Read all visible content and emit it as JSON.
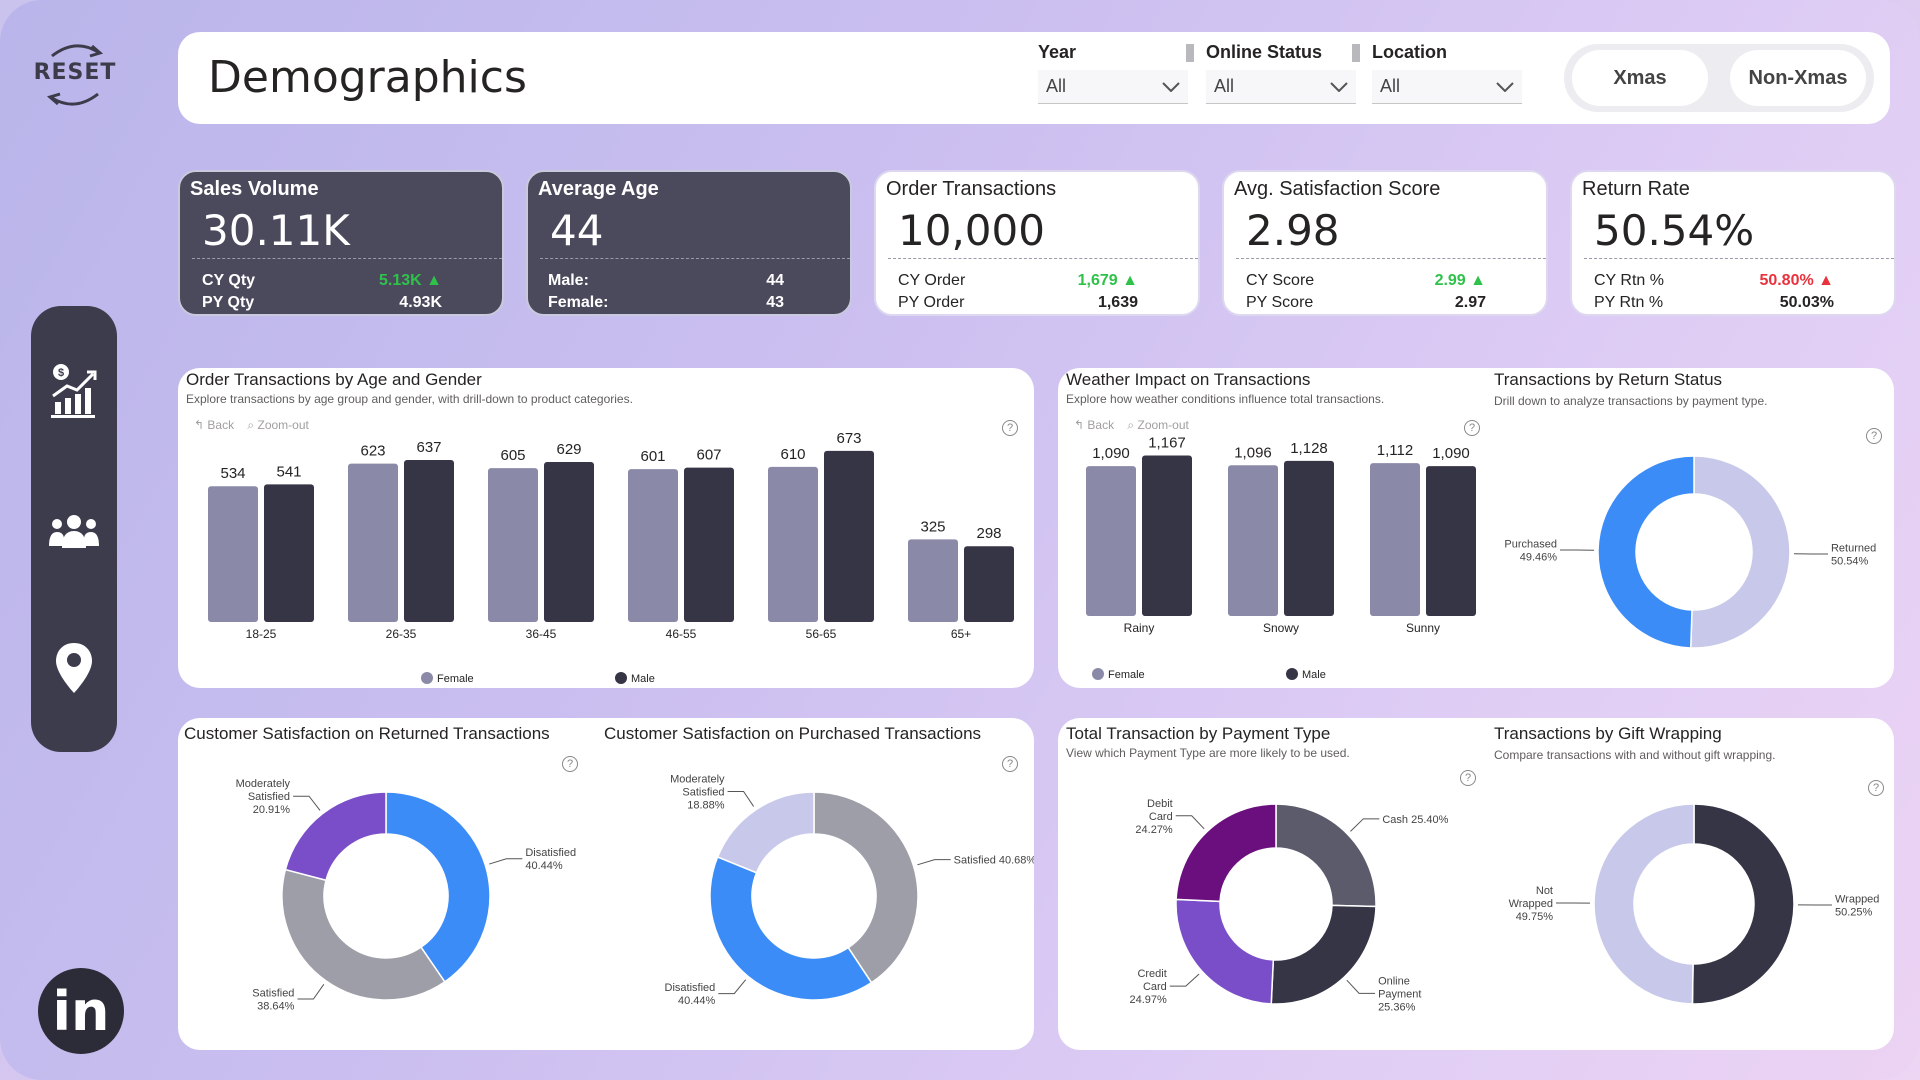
{
  "header": {
    "title": "Demographics",
    "slicers": [
      {
        "label": "Year",
        "value": "All"
      },
      {
        "label": "Online Status",
        "value": "All"
      },
      {
        "label": "Location",
        "value": "All"
      }
    ],
    "toggle": {
      "left": "Xmas",
      "right": "Non-Xmas"
    }
  },
  "sidebar": {
    "reset_label": "RESET",
    "items": [
      {
        "icon": "sales-chart-icon"
      },
      {
        "icon": "people-icon"
      },
      {
        "icon": "location-pin-icon"
      }
    ],
    "linkedin_label": "in"
  },
  "kpis": [
    {
      "title": "Sales Volume",
      "value": "30.11K",
      "row1_label": "CY Qty",
      "row1_value": "5.13K",
      "row1_trend": "up",
      "row2_label": "PY Qty",
      "row2_value": "4.93K"
    },
    {
      "title": "Average Age",
      "value": "44",
      "row1_label": "Male:",
      "row1_value": "44",
      "row1_trend": "",
      "row2_label": "Female:",
      "row2_value": "43"
    },
    {
      "title": "Order Transactions",
      "value": "10,000",
      "row1_label": "CY Order",
      "row1_value": "1,679",
      "row1_trend": "up",
      "row2_label": "PY Order",
      "row2_value": "1,639"
    },
    {
      "title": "Avg. Satisfaction Score",
      "value": "2.98",
      "row1_label": "CY Score",
      "row1_value": "2.99",
      "row1_trend": "up",
      "row2_label": "PY Score",
      "row2_value": "2.97"
    },
    {
      "title": "Return Rate",
      "value": "50.54%",
      "row1_label": "CY Rtn %",
      "row1_value": "50.80%",
      "row1_trend": "up-red",
      "row2_label": "PY Rtn %",
      "row2_value": "50.03%"
    }
  ],
  "chart_tools": {
    "back": "Back",
    "zoom": "Zoom-out",
    "help": "?"
  },
  "colors": {
    "female": "#8a8aa8",
    "male": "#363545",
    "blue": "#3c8cf8",
    "lavender": "#c8c9ea",
    "gray": "#9e9ea8",
    "purple": "#7a4ec8",
    "dark_purple": "#6b0f7e",
    "slate": "#5b5b6b"
  },
  "chart_data": [
    {
      "id": "age_gender",
      "type": "bar",
      "title": "Order Transactions by Age and Gender",
      "subtitle": "Explore transactions by age group and gender, with drill-down to product categories.",
      "categories": [
        "18-25",
        "26-35",
        "36-45",
        "46-55",
        "56-65",
        "65+"
      ],
      "series": [
        {
          "name": "Female",
          "values": [
            534,
            623,
            605,
            601,
            610,
            325
          ]
        },
        {
          "name": "Male",
          "values": [
            541,
            637,
            629,
            607,
            673,
            298
          ]
        }
      ],
      "ylim": [
        0,
        700
      ],
      "legend": "bottom"
    },
    {
      "id": "weather",
      "type": "bar",
      "title": "Weather Impact on Transactions",
      "subtitle": "Explore how weather conditions influence total transactions.",
      "categories": [
        "Rainy",
        "Snowy",
        "Sunny"
      ],
      "series": [
        {
          "name": "Female",
          "values": [
            1090,
            1096,
            1112
          ]
        },
        {
          "name": "Male",
          "values": [
            1167,
            1128,
            1090
          ]
        }
      ],
      "ylim": [
        0,
        1200
      ],
      "legend": "bottom"
    },
    {
      "id": "return_status",
      "type": "pie",
      "title": "Transactions by Return Status",
      "subtitle": "Drill down to analyze transactions by payment type.",
      "slices": [
        {
          "label": "Returned",
          "pct_label": "50.54%",
          "value": 50.54,
          "color": "#c8c9ea"
        },
        {
          "label": "Purchased",
          "pct_label": "49.46%",
          "value": 49.46,
          "color": "#3c8cf8"
        }
      ]
    },
    {
      "id": "sat_returned",
      "type": "pie",
      "title": "Customer Satisfaction on Returned Transactions",
      "subtitle": "",
      "slices": [
        {
          "label": "Disatisfied",
          "pct_label": "40.44%",
          "value": 40.44,
          "color": "#3c8cf8"
        },
        {
          "label": "Satisfied",
          "pct_label": "38.64%",
          "value": 38.64,
          "color": "#9e9ea8"
        },
        {
          "label": "Moderately Satisfied",
          "pct_label": "20.91%",
          "value": 20.91,
          "color": "#7a4ec8"
        }
      ]
    },
    {
      "id": "sat_purchased",
      "type": "pie",
      "title": "Customer Satisfaction on Purchased Transactions",
      "subtitle": "",
      "slices": [
        {
          "label": "Satisfied",
          "pct_label": "40.68%",
          "value": 40.68,
          "color": "#9e9ea8"
        },
        {
          "label": "Disatisfied",
          "pct_label": "40.44%",
          "value": 40.44,
          "color": "#3c8cf8"
        },
        {
          "label": "Moderately Satisfied",
          "pct_label": "18.88%",
          "value": 18.88,
          "color": "#c8c9ea"
        }
      ]
    },
    {
      "id": "payment_type",
      "type": "pie",
      "title": "Total Transaction by Payment Type",
      "subtitle": "View which Payment Type are more likely to be used.",
      "slices": [
        {
          "label": "Cash",
          "pct_label": "25.40%",
          "value": 25.4,
          "color": "#5b5b6b"
        },
        {
          "label": "Online Payment",
          "pct_label": "25.36%",
          "value": 25.36,
          "color": "#363545"
        },
        {
          "label": "Credit Card",
          "pct_label": "24.97%",
          "value": 24.97,
          "color": "#7a4ec8"
        },
        {
          "label": "Debit Card",
          "pct_label": "24.27%",
          "value": 24.27,
          "color": "#6b0f7e"
        }
      ]
    },
    {
      "id": "gift_wrapping",
      "type": "pie",
      "title": "Transactions by Gift Wrapping",
      "subtitle": "Compare transactions with and without gift wrapping.",
      "slices": [
        {
          "label": "Wrapped",
          "pct_label": "50.25%",
          "value": 50.25,
          "color": "#363545"
        },
        {
          "label": "Not Wrapped",
          "pct_label": "49.75%",
          "value": 49.75,
          "color": "#c8c9ea"
        }
      ]
    }
  ]
}
